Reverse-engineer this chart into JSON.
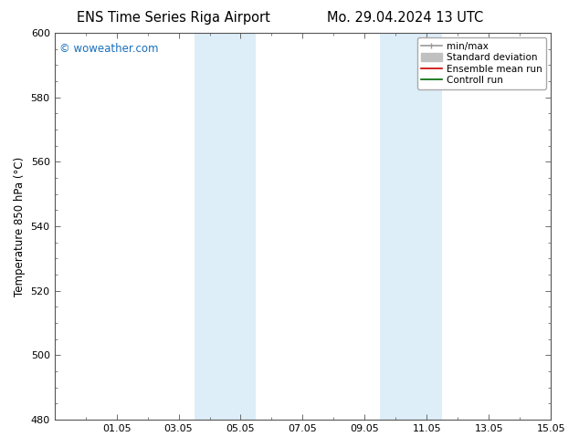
{
  "title_left": "ENS Time Series Riga Airport",
  "title_right": "Mo. 29.04.2024 13 UTC",
  "ylabel": "Temperature 850 hPa (°C)",
  "ylim": [
    480,
    600
  ],
  "yticks": [
    480,
    500,
    520,
    540,
    560,
    580,
    600
  ],
  "xlim": [
    0,
    16
  ],
  "xtick_labels": [
    "01.05",
    "03.05",
    "05.05",
    "07.05",
    "09.05",
    "11.05",
    "13.05",
    "15.05"
  ],
  "xtick_positions": [
    2,
    4,
    6,
    8,
    10,
    12,
    14,
    16
  ],
  "shaded_regions": [
    {
      "x_start": 4.5,
      "x_end": 6.5,
      "color": "#ddeef8"
    },
    {
      "x_start": 10.5,
      "x_end": 12.5,
      "color": "#ddeef8"
    }
  ],
  "watermark_text": "© woweather.com",
  "watermark_color": "#1a6fbd",
  "watermark_fontsize": 8.5,
  "bg_color": "#ffffff",
  "plot_bg_color": "#ffffff",
  "legend_entries": [
    {
      "label": "min/max",
      "color": "#999999",
      "lw": 1.2
    },
    {
      "label": "Standard deviation",
      "color": "#c0c0c0",
      "lw": 5
    },
    {
      "label": "Ensemble mean run",
      "color": "#cc0000",
      "lw": 1.2
    },
    {
      "label": "Controll run",
      "color": "#006600",
      "lw": 1.2
    }
  ],
  "title_fontsize": 10.5,
  "axis_fontsize": 8.5,
  "tick_fontsize": 8,
  "legend_fontsize": 7.5,
  "font_family": "DejaVu Sans"
}
